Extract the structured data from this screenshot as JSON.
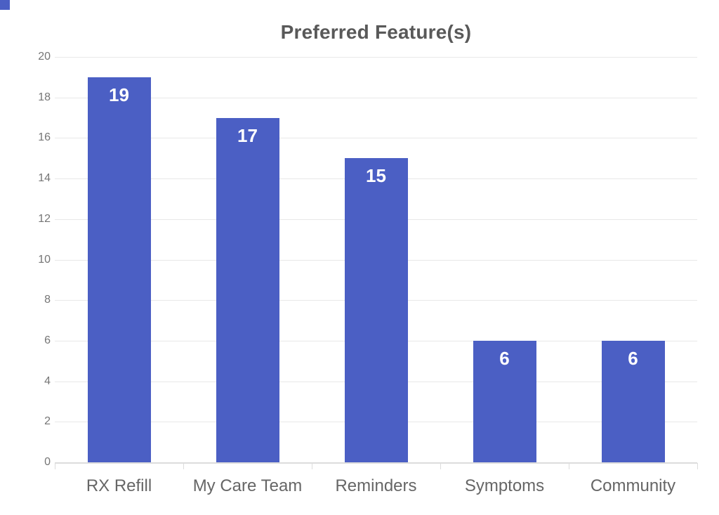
{
  "chart_data": {
    "type": "bar",
    "title": "Preferred Feature(s)",
    "categories": [
      "RX Refill",
      "My Care Team",
      "Reminders",
      "Symptoms",
      "Community"
    ],
    "values": [
      19,
      17,
      15,
      6,
      6
    ],
    "bar_value_labels": [
      "19",
      "17",
      "15",
      "6",
      "6"
    ],
    "xlabel": "",
    "ylabel": "",
    "ylim": [
      0,
      20
    ],
    "yticks": [
      0,
      2,
      4,
      6,
      8,
      10,
      12,
      14,
      16,
      18,
      20
    ],
    "grid": true,
    "legend_position": "none",
    "colors": {
      "bar": "#4b5fc4",
      "bar_value_label": "#ffffff",
      "title": "#595959",
      "y_tick_label": "#757575",
      "x_category_label": "#666666",
      "gridline": "#e8e8e8",
      "axis_line": "#dcdcdc",
      "corner_square": "#4b5fc4"
    }
  }
}
